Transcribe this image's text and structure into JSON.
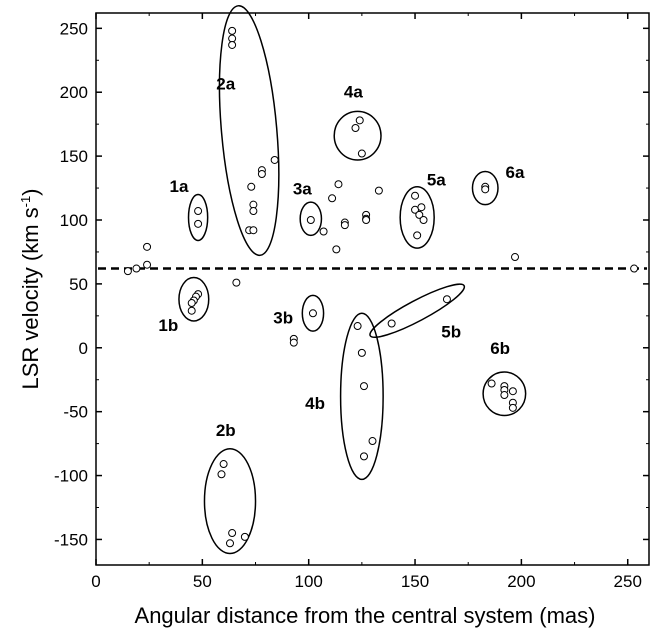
{
  "chart_data": {
    "type": "scatter",
    "title": "",
    "xlabel": "Angular distance from the central system (mas)",
    "ylabel_main": "LSR velocity (km s",
    "ylabel_sup": "-1",
    "ylabel_end": ")",
    "xlim": [
      0,
      260
    ],
    "ylim": [
      -170,
      262
    ],
    "xticks": [
      "0",
      "50",
      "100",
      "150",
      "200",
      "250"
    ],
    "xtick_values": [
      0,
      50,
      100,
      150,
      200,
      250
    ],
    "yticks": [
      "-150",
      "-100",
      "-50",
      "0",
      "50",
      "100",
      "150",
      "200",
      "250"
    ],
    "ytick_values": [
      -150,
      -100,
      -50,
      0,
      50,
      100,
      150,
      200,
      250
    ],
    "reference_line": {
      "y": 62,
      "style": "dashed"
    },
    "points": [
      [
        64,
        248
      ],
      [
        64,
        242
      ],
      [
        64,
        237
      ],
      [
        84,
        147
      ],
      [
        78,
        139
      ],
      [
        78,
        136
      ],
      [
        73,
        126
      ],
      [
        74,
        112
      ],
      [
        74,
        107
      ],
      [
        72,
        92
      ],
      [
        74,
        92
      ],
      [
        48,
        107
      ],
      [
        48,
        97
      ],
      [
        101,
        100
      ],
      [
        107,
        91
      ],
      [
        111,
        117
      ],
      [
        113,
        77
      ],
      [
        114,
        128
      ],
      [
        117,
        98
      ],
      [
        117,
        96
      ],
      [
        122,
        172
      ],
      [
        124,
        178
      ],
      [
        125,
        152
      ],
      [
        127,
        104
      ],
      [
        127,
        101
      ],
      [
        127,
        100
      ],
      [
        133,
        123
      ],
      [
        150,
        119
      ],
      [
        150,
        108
      ],
      [
        151,
        88
      ],
      [
        152,
        104
      ],
      [
        153,
        110
      ],
      [
        154,
        100
      ],
      [
        183,
        126
      ],
      [
        183,
        124
      ],
      [
        24,
        79
      ],
      [
        24,
        65
      ],
      [
        19,
        62
      ],
      [
        15,
        60
      ],
      [
        197,
        71
      ],
      [
        66,
        51
      ],
      [
        253,
        62
      ],
      [
        48,
        42
      ],
      [
        47,
        40
      ],
      [
        46,
        37
      ],
      [
        45,
        35
      ],
      [
        45,
        29
      ],
      [
        102,
        27
      ],
      [
        93,
        7
      ],
      [
        93,
        4
      ],
      [
        139,
        19
      ],
      [
        165,
        38
      ],
      [
        123,
        17
      ],
      [
        125,
        -4
      ],
      [
        126,
        -30
      ],
      [
        130,
        -73
      ],
      [
        126,
        -85
      ],
      [
        186,
        -28
      ],
      [
        192,
        -30
      ],
      [
        192,
        -33
      ],
      [
        196,
        -34
      ],
      [
        192,
        -37
      ],
      [
        196,
        -43
      ],
      [
        196,
        -47
      ],
      [
        60,
        -91
      ],
      [
        59,
        -99
      ],
      [
        64,
        -145
      ],
      [
        70,
        -148
      ],
      [
        63,
        -153
      ]
    ],
    "groups": [
      {
        "label": "1a",
        "cx": 48,
        "cy": 102,
        "rx": 4.5,
        "ry": 18,
        "angle": 0,
        "label_x": 39,
        "label_y": 122
      },
      {
        "label": "2a",
        "cx": 72,
        "cy": 170,
        "rx": 13,
        "ry": 98,
        "angle": -5,
        "label_x": 61,
        "label_y": 202
      },
      {
        "label": "3a",
        "cx": 101,
        "cy": 101,
        "rx": 5,
        "ry": 13,
        "angle": 0,
        "label_x": 97,
        "label_y": 120
      },
      {
        "label": "4a",
        "cx": 123,
        "cy": 166,
        "rx": 11,
        "ry": 19,
        "angle": 0,
        "label_x": 121,
        "label_y": 196
      },
      {
        "label": "5a",
        "cx": 151,
        "cy": 102,
        "rx": 8,
        "ry": 24,
        "angle": 0,
        "label_x": 160,
        "label_y": 127
      },
      {
        "label": "6a",
        "cx": 183,
        "cy": 125,
        "rx": 6,
        "ry": 13,
        "angle": 0,
        "label_x": 197,
        "label_y": 133
      },
      {
        "label": "1b",
        "cx": 46,
        "cy": 38,
        "rx": 7,
        "ry": 17,
        "angle": 0,
        "label_x": 34,
        "label_y": 13
      },
      {
        "label": "3b",
        "cx": 102,
        "cy": 27,
        "rx": 5,
        "ry": 14,
        "angle": 0,
        "label_x": 88,
        "label_y": 19
      },
      {
        "label": "5b",
        "cx": 151,
        "cy": 29,
        "rx": 25,
        "ry": 8,
        "angle": -28,
        "label_x": 167,
        "label_y": 8
      },
      {
        "label": "4b",
        "cx": 125,
        "cy": -38,
        "rx": 10,
        "ry": 65,
        "angle": 0,
        "label_x": 103,
        "label_y": -48
      },
      {
        "label": "6b",
        "cx": 192,
        "cy": -36,
        "rx": 10,
        "ry": 17,
        "angle": 0,
        "label_x": 190,
        "label_y": -5
      },
      {
        "label": "2b",
        "cx": 63,
        "cy": -120,
        "rx": 12,
        "ry": 41,
        "angle": 0,
        "label_x": 61,
        "label_y": -69
      }
    ]
  }
}
